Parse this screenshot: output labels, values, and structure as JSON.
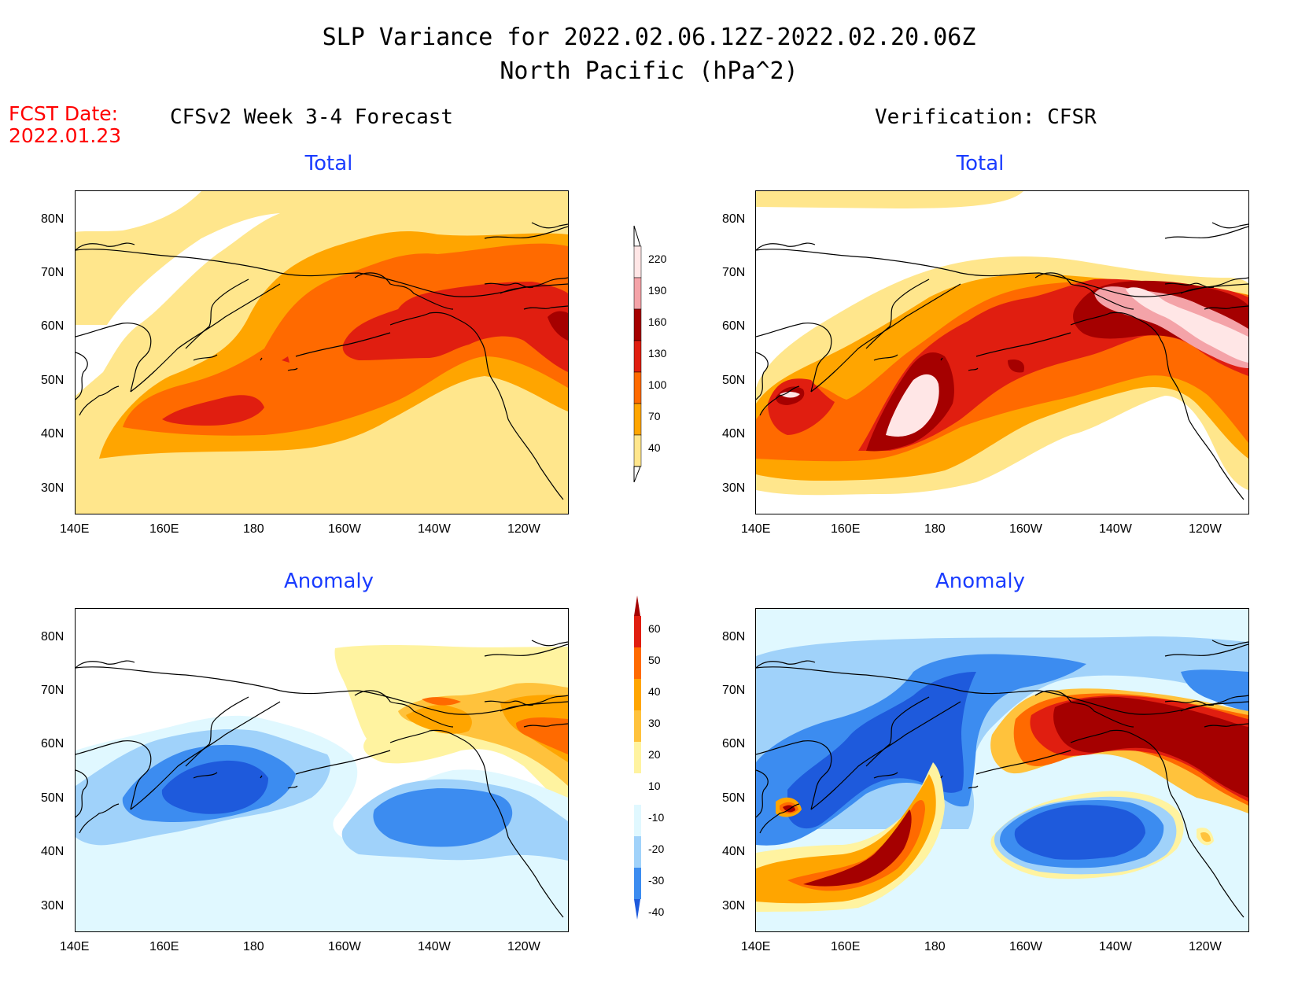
{
  "header": {
    "title_line1": "SLP Variance for 2022.02.06.12Z-2022.02.20.06Z",
    "title_line2": "North Pacific (hPa^2)",
    "fcst_label": "FCST Date:",
    "fcst_date": "2022.01.23",
    "left_head": "CFSv2 Week 3-4 Forecast",
    "right_head": "Verification: CFSR"
  },
  "panels": {
    "total_label": "Total",
    "anomaly_label": "Anomaly"
  },
  "axes": {
    "lat_labels": [
      "80N",
      "70N",
      "60N",
      "50N",
      "40N",
      "30N"
    ],
    "lon_labels": [
      "140E",
      "160E",
      "180",
      "160W",
      "140W",
      "120W"
    ]
  },
  "colorbar_total": {
    "levels": [
      "220",
      "190",
      "160",
      "130",
      "100",
      "70",
      "40"
    ],
    "colors": [
      "#ffe6e6",
      "#f4a3a8",
      "#a50000",
      "#e01e10",
      "#ff6a00",
      "#ffa500",
      "#ffe68c"
    ]
  },
  "colorbar_anom": {
    "levels": [
      "60",
      "50",
      "40",
      "30",
      "20",
      "10",
      "-10",
      "-20",
      "-30",
      "-40"
    ],
    "colors": [
      "#a50000",
      "#e01e10",
      "#ff6a00",
      "#ffa500",
      "#ffc23c",
      "#fff3a0",
      "#ffffff",
      "#e0f8ff",
      "#a0d2fa",
      "#3c8cf0",
      "#1e5adc"
    ]
  },
  "chart_data": {
    "type": "heatmap",
    "variable": "SLP Variance",
    "units": "hPa^2",
    "region": "North Pacific",
    "period": "2022.02.06.12Z-2022.02.20.06Z",
    "xlim": [
      "140E",
      "110W"
    ],
    "ylim": [
      "25N",
      "85N"
    ],
    "panels": [
      {
        "name": "CFSv2 Week 3-4 Forecast - Total",
        "max_contour": 160
      },
      {
        "name": "Verification: CFSR - Total",
        "max_contour": 220
      },
      {
        "name": "CFSv2 Week 3-4 Forecast - Anomaly",
        "range": [
          -40,
          40
        ]
      },
      {
        "name": "Verification: CFSR - Anomaly",
        "range": [
          -40,
          60
        ]
      }
    ]
  }
}
